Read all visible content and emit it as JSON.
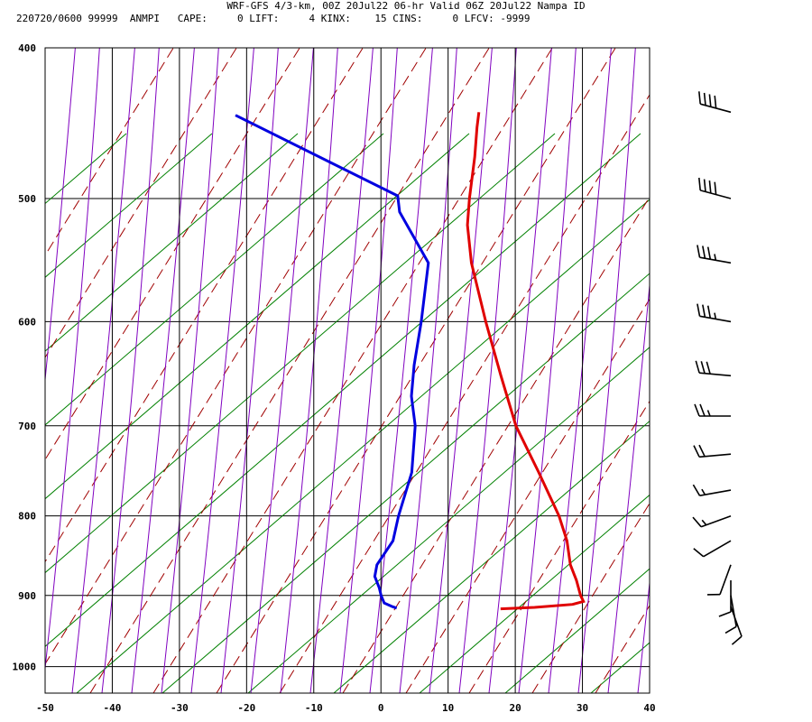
{
  "header": {
    "title": "WRF-GFS 4/3-km, 00Z 20Jul22 06-hr Valid 06Z 20Jul22 Nampa ID",
    "info": "220720/0600 99999  ANMPI   CAPE:     0 LIFT:     4 KINX:    15 CINS:     0 LFCV: -9999"
  },
  "chart_data": {
    "type": "line",
    "title": "WRF-GFS 4/3-km, 00Z 20Jul22 06-hr Valid 06Z 20Jul22 Nampa ID",
    "chart_subtype": "skew-T log-P sounding",
    "x_axis": {
      "label": "",
      "ticks": [
        -50,
        -40,
        -30,
        -20,
        -10,
        0,
        10,
        20,
        30,
        40
      ],
      "range": [
        -50,
        40
      ]
    },
    "y_axis": {
      "label": "",
      "ticks": [
        400,
        500,
        600,
        700,
        800,
        900,
        1000
      ],
      "range": [
        1040,
        400
      ],
      "scale": "log"
    },
    "grid": true,
    "series": [
      {
        "name": "",
        "color": "#e00000",
        "points": [
          [
            440,
            -11.7
          ],
          [
            450,
            -11.3
          ],
          [
            470,
            -10.3
          ],
          [
            500,
            -9.2
          ],
          [
            520,
            -8.3
          ],
          [
            550,
            -6.0
          ],
          [
            600,
            -1.2
          ],
          [
            650,
            3.5
          ],
          [
            700,
            8.0
          ],
          [
            750,
            13.5
          ],
          [
            800,
            18.5
          ],
          [
            830,
            20.8
          ],
          [
            860,
            22.4
          ],
          [
            880,
            24.0
          ],
          [
            900,
            25.3
          ],
          [
            908,
            26.0
          ],
          [
            912,
            24.5
          ],
          [
            916,
            19.0
          ],
          [
            918,
            14.0
          ]
        ]
      },
      {
        "name": "",
        "color": "#0000e0",
        "points": [
          [
            442,
            -47.8
          ],
          [
            498,
            -20.0
          ],
          [
            510,
            -19.0
          ],
          [
            550,
            -12.4
          ],
          [
            600,
            -10.8
          ],
          [
            640,
            -9.9
          ],
          [
            670,
            -8.9
          ],
          [
            700,
            -7.0
          ],
          [
            750,
            -5.4
          ],
          [
            800,
            -5.4
          ],
          [
            830,
            -5.1
          ],
          [
            860,
            -6.4
          ],
          [
            875,
            -6.2
          ],
          [
            890,
            -5.0
          ],
          [
            900,
            -4.4
          ],
          [
            910,
            -3.6
          ],
          [
            915,
            -2.2
          ],
          [
            917,
            -1.5
          ]
        ]
      }
    ],
    "wind_barbs": [
      {
        "p": 440,
        "dir": 285,
        "kt": 40
      },
      {
        "p": 500,
        "dir": 285,
        "kt": 40
      },
      {
        "p": 550,
        "dir": 280,
        "kt": 35
      },
      {
        "p": 600,
        "dir": 280,
        "kt": 35
      },
      {
        "p": 650,
        "dir": 275,
        "kt": 30
      },
      {
        "p": 690,
        "dir": 270,
        "kt": 25
      },
      {
        "p": 730,
        "dir": 265,
        "kt": 20
      },
      {
        "p": 770,
        "dir": 260,
        "kt": 15
      },
      {
        "p": 800,
        "dir": 250,
        "kt": 15
      },
      {
        "p": 830,
        "dir": 240,
        "kt": 10
      },
      {
        "p": 860,
        "dir": 200,
        "kt": 10
      },
      {
        "p": 880,
        "dir": 180,
        "kt": 10
      },
      {
        "p": 900,
        "dir": 170,
        "kt": 10
      },
      {
        "p": 915,
        "dir": 160,
        "kt": 10
      }
    ]
  },
  "colors": {
    "frame": "#000000",
    "isotherm_grid": "#000000",
    "dry_adiabat": "#008000",
    "moist_adiabat": "#a00000",
    "mixing_ratio": "#8000c0",
    "temperature": "#e00000",
    "dewpoint": "#0000e0"
  }
}
